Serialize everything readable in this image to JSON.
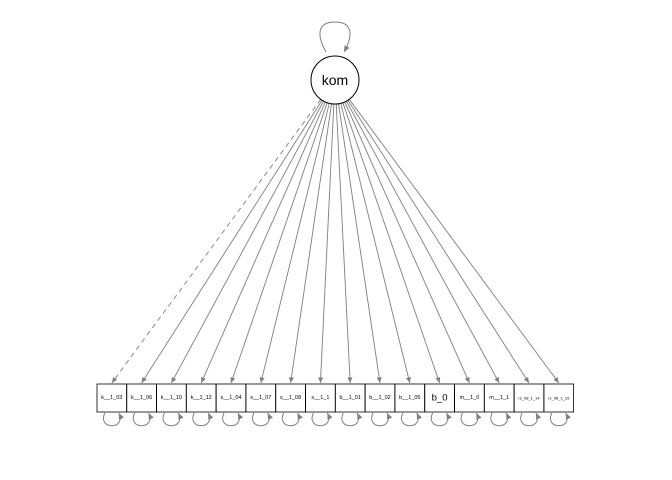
{
  "diagram": {
    "type": "path-diagram",
    "latent": {
      "label": "kom"
    },
    "indicators": [
      {
        "label": "k__1_03",
        "dashed": true
      },
      {
        "label": "k__1_06",
        "dashed": false
      },
      {
        "label": "k__1_10",
        "dashed": false
      },
      {
        "label": "k__1_12",
        "dashed": false
      },
      {
        "label": "s__1_04",
        "dashed": false
      },
      {
        "label": "s__1_07",
        "dashed": false
      },
      {
        "label": "s__1_08",
        "dashed": false
      },
      {
        "label": "s__1_1",
        "dashed": false
      },
      {
        "label": "b__1_01",
        "dashed": false
      },
      {
        "label": "b__1_02",
        "dashed": false
      },
      {
        "label": "b__1_05",
        "dashed": false
      },
      {
        "label": "b_0",
        "dashed": false,
        "size": "big"
      },
      {
        "label": "m__1_0",
        "dashed": false
      },
      {
        "label": "m__1_1",
        "dashed": false
      },
      {
        "label": "rs_08_1_14",
        "dashed": false,
        "size": "tiny"
      },
      {
        "label": "rs_08_1_15",
        "dashed": false,
        "size": "tiny"
      }
    ],
    "colors": {
      "edge": "#7f7f7f",
      "node_border": "#000000",
      "background": "#ffffff"
    }
  }
}
